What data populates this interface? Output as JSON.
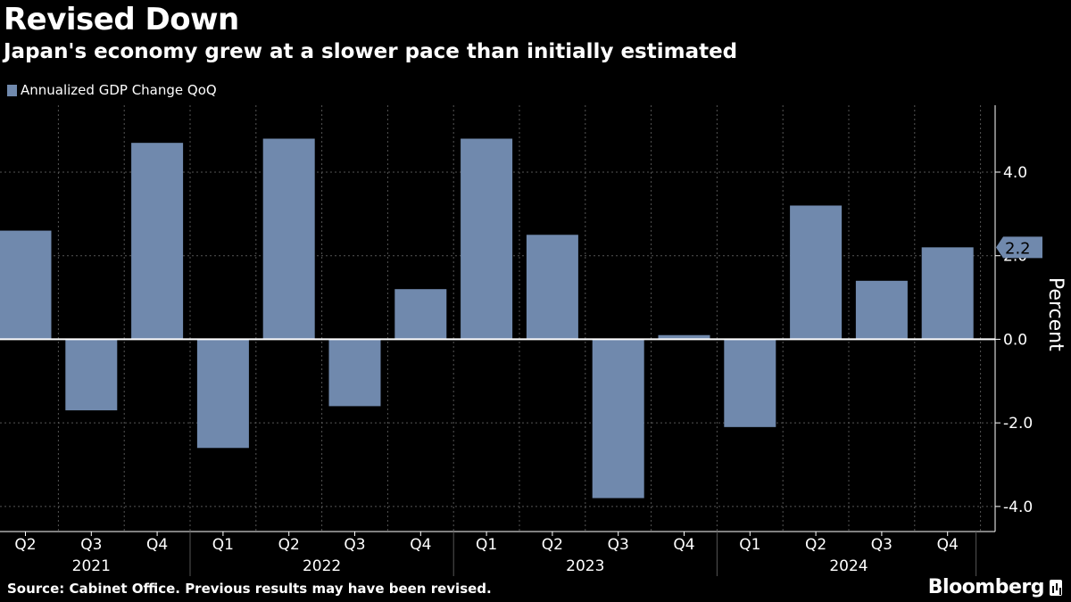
{
  "title": "Revised Down",
  "subtitle": "Japan's economy grew at a slower pace than initially estimated",
  "legend_label": "Annualized GDP Change QoQ",
  "footer": "Source: Cabinet Office. Previous results may have been revised.",
  "brand": "Bloomberg",
  "colors": {
    "bar": "#7089ad",
    "background": "#000000",
    "grid": "#555555"
  },
  "chart_data": {
    "type": "bar",
    "ylabel": "Percent",
    "ylim": [
      -4.6,
      5.6
    ],
    "yticks": [
      4.0,
      2.0,
      0.0,
      -2.0,
      -4.0
    ],
    "ytick_labels": [
      "4.0",
      "2.0",
      "0.0",
      "-2.0",
      "-4.0"
    ],
    "categories": [
      "Q2",
      "Q3",
      "Q4",
      "Q1",
      "Q2",
      "Q3",
      "Q4",
      "Q1",
      "Q2",
      "Q3",
      "Q4",
      "Q1",
      "Q2",
      "Q3",
      "Q4"
    ],
    "years": [
      "2021",
      "2022",
      "2023",
      "2024"
    ],
    "series": [
      {
        "name": "Annualized GDP Change QoQ",
        "values": [
          2.6,
          -1.7,
          4.7,
          -2.6,
          4.8,
          -1.6,
          1.2,
          4.8,
          2.5,
          -3.8,
          0.1,
          -2.1,
          3.2,
          1.4,
          2.2
        ]
      }
    ],
    "last_value_label": "2.2"
  }
}
